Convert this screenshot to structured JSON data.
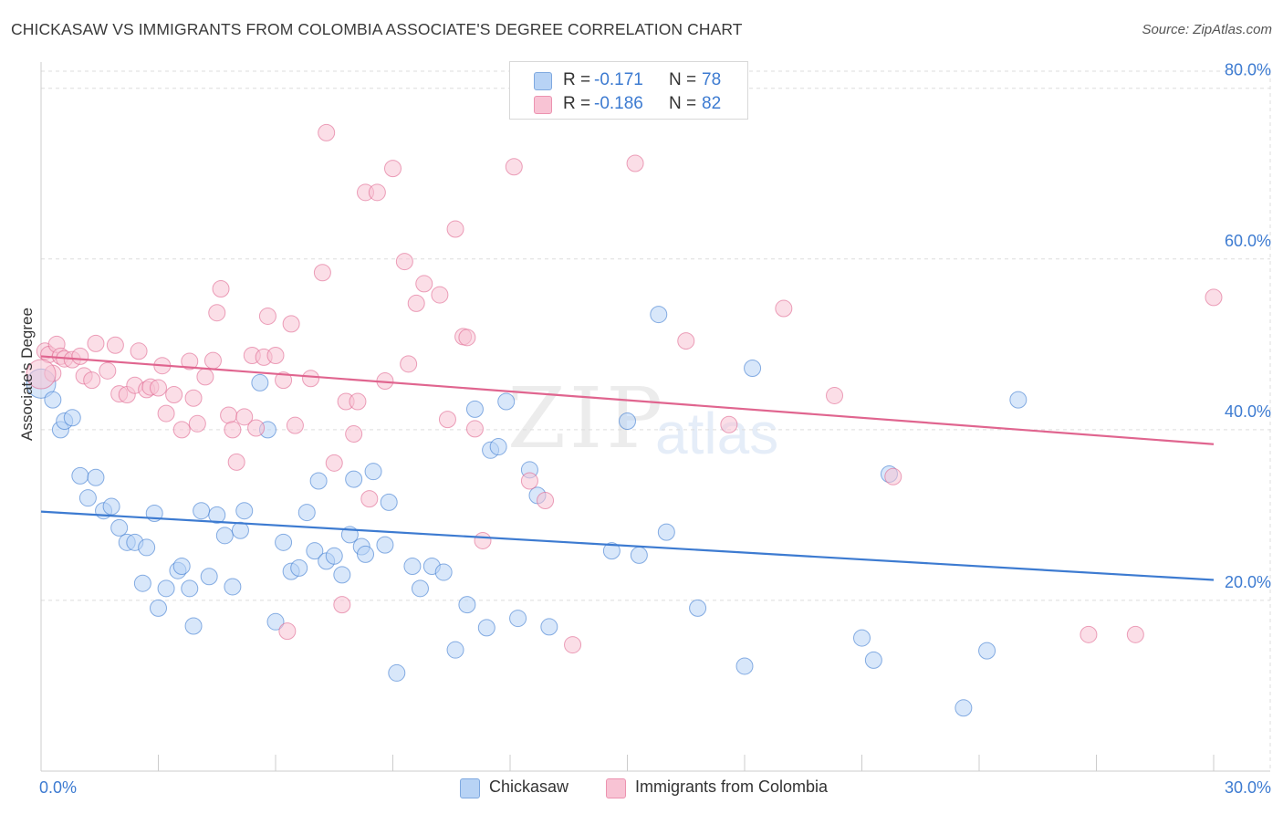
{
  "header": {
    "title": "CHICKASAW VS IMMIGRANTS FROM COLOMBIA ASSOCIATE'S DEGREE CORRELATION CHART",
    "source": "Source: ZipAtlas.com"
  },
  "watermark": {
    "zip": "ZIP",
    "atlas": "atlas"
  },
  "legend": {
    "r_label": "R =",
    "n_label": "N =",
    "rows": [
      {
        "r": "-0.171",
        "n": "78",
        "color": "#b8d3f5"
      },
      {
        "r": "-0.186",
        "n": "82",
        "color": "#f8c3d4"
      }
    ]
  },
  "bottom_legend": [
    {
      "label": "Chickasaw",
      "color": "#b8d3f5"
    },
    {
      "label": "Immigrants from Colombia",
      "color": "#f8c3d4"
    }
  ],
  "chart_data": {
    "type": "scatter",
    "title": "CHICKASAW VS IMMIGRANTS FROM COLOMBIA ASSOCIATE'S DEGREE CORRELATION CHART",
    "xlabel": "",
    "ylabel": "Associate's Degree",
    "xlim": [
      0,
      30
    ],
    "ylim": [
      0,
      82
    ],
    "x_tick_labels": [
      "0.0%",
      "30.0%"
    ],
    "y_ticks": [
      20,
      40,
      60,
      80
    ],
    "y_tick_labels": [
      "20.0%",
      "40.0%",
      "60.0%",
      "80.0%"
    ],
    "grid": true,
    "series": [
      {
        "name": "Chickasaw",
        "color": "#3d7bd1",
        "fill": "#b8d3f5",
        "r": -0.171,
        "n": 78,
        "trend": {
          "x": [
            0,
            30
          ],
          "y": [
            30.4,
            22.4
          ]
        },
        "points": [
          [
            0.0,
            45.4
          ],
          [
            0.3,
            43.5
          ],
          [
            0.5,
            40.0
          ],
          [
            0.6,
            41.0
          ],
          [
            0.8,
            41.4
          ],
          [
            1.0,
            34.6
          ],
          [
            1.2,
            32.0
          ],
          [
            1.4,
            34.4
          ],
          [
            1.6,
            30.5
          ],
          [
            1.8,
            31.0
          ],
          [
            2.0,
            28.5
          ],
          [
            2.2,
            26.8
          ],
          [
            2.4,
            26.8
          ],
          [
            2.6,
            22.0
          ],
          [
            2.7,
            26.2
          ],
          [
            2.9,
            30.2
          ],
          [
            3.0,
            19.1
          ],
          [
            3.2,
            21.4
          ],
          [
            3.5,
            23.5
          ],
          [
            3.6,
            24.0
          ],
          [
            3.8,
            21.4
          ],
          [
            3.9,
            17.0
          ],
          [
            4.1,
            30.5
          ],
          [
            4.3,
            22.8
          ],
          [
            4.5,
            30.0
          ],
          [
            4.7,
            27.6
          ],
          [
            4.9,
            21.6
          ],
          [
            5.1,
            28.2
          ],
          [
            5.2,
            30.5
          ],
          [
            5.6,
            45.5
          ],
          [
            5.8,
            40.0
          ],
          [
            6.0,
            17.5
          ],
          [
            6.2,
            26.8
          ],
          [
            6.4,
            23.4
          ],
          [
            6.6,
            23.8
          ],
          [
            6.8,
            30.3
          ],
          [
            7.0,
            25.8
          ],
          [
            7.1,
            34.0
          ],
          [
            7.3,
            24.6
          ],
          [
            7.5,
            25.2
          ],
          [
            7.7,
            23.0
          ],
          [
            7.9,
            27.7
          ],
          [
            8.0,
            34.2
          ],
          [
            8.2,
            26.3
          ],
          [
            8.3,
            25.4
          ],
          [
            8.5,
            35.1
          ],
          [
            8.8,
            26.5
          ],
          [
            8.9,
            31.5
          ],
          [
            9.1,
            11.5
          ],
          [
            9.5,
            24.0
          ],
          [
            9.7,
            21.4
          ],
          [
            10.0,
            24.0
          ],
          [
            10.3,
            23.3
          ],
          [
            10.6,
            14.2
          ],
          [
            10.9,
            19.5
          ],
          [
            11.1,
            42.4
          ],
          [
            11.4,
            16.8
          ],
          [
            11.5,
            37.6
          ],
          [
            11.7,
            38.0
          ],
          [
            11.9,
            43.3
          ],
          [
            12.2,
            17.9
          ],
          [
            12.5,
            35.3
          ],
          [
            12.7,
            32.3
          ],
          [
            13.0,
            16.9
          ],
          [
            14.6,
            25.8
          ],
          [
            15.0,
            41.0
          ],
          [
            15.3,
            25.3
          ],
          [
            15.8,
            53.5
          ],
          [
            16.0,
            28.0
          ],
          [
            16.8,
            19.1
          ],
          [
            18.0,
            12.3
          ],
          [
            18.2,
            47.2
          ],
          [
            21.0,
            15.6
          ],
          [
            21.3,
            13.0
          ],
          [
            21.7,
            34.8
          ],
          [
            23.6,
            7.4
          ],
          [
            24.2,
            14.1
          ],
          [
            25.0,
            43.5
          ]
        ]
      },
      {
        "name": "Immigrants from Colombia",
        "color": "#e0658f",
        "fill": "#f8c3d4",
        "r": -0.186,
        "n": 82,
        "trend": {
          "x": [
            0,
            30
          ],
          "y": [
            48.6,
            38.3
          ]
        },
        "points": [
          [
            0.1,
            49.2
          ],
          [
            0.2,
            48.8
          ],
          [
            0.3,
            46.6
          ],
          [
            0.4,
            50.0
          ],
          [
            0.5,
            48.6
          ],
          [
            0.6,
            48.3
          ],
          [
            0.8,
            48.2
          ],
          [
            1.0,
            48.6
          ],
          [
            1.1,
            46.3
          ],
          [
            1.3,
            45.8
          ],
          [
            1.4,
            50.1
          ],
          [
            1.7,
            46.9
          ],
          [
            1.9,
            49.9
          ],
          [
            2.0,
            44.2
          ],
          [
            2.2,
            44.1
          ],
          [
            2.4,
            45.2
          ],
          [
            2.5,
            49.2
          ],
          [
            2.7,
            44.7
          ],
          [
            2.8,
            45.0
          ],
          [
            3.0,
            44.9
          ],
          [
            3.1,
            47.5
          ],
          [
            3.2,
            41.9
          ],
          [
            3.4,
            44.1
          ],
          [
            3.6,
            40.0
          ],
          [
            3.8,
            48.0
          ],
          [
            3.9,
            43.7
          ],
          [
            4.0,
            40.7
          ],
          [
            4.2,
            46.2
          ],
          [
            4.4,
            48.1
          ],
          [
            4.5,
            53.7
          ],
          [
            4.6,
            56.5
          ],
          [
            4.8,
            41.7
          ],
          [
            4.9,
            40.0
          ],
          [
            5.0,
            36.2
          ],
          [
            5.2,
            41.5
          ],
          [
            5.4,
            48.7
          ],
          [
            5.5,
            40.2
          ],
          [
            5.7,
            48.5
          ],
          [
            5.8,
            53.3
          ],
          [
            6.0,
            48.7
          ],
          [
            6.2,
            45.8
          ],
          [
            6.3,
            16.4
          ],
          [
            6.4,
            52.4
          ],
          [
            6.5,
            40.5
          ],
          [
            6.9,
            46.0
          ],
          [
            7.2,
            58.4
          ],
          [
            7.3,
            74.8
          ],
          [
            7.5,
            36.1
          ],
          [
            7.7,
            19.5
          ],
          [
            7.8,
            43.3
          ],
          [
            8.0,
            39.5
          ],
          [
            8.1,
            43.3
          ],
          [
            8.3,
            67.8
          ],
          [
            8.4,
            31.9
          ],
          [
            8.6,
            67.8
          ],
          [
            8.8,
            45.7
          ],
          [
            9.0,
            70.6
          ],
          [
            9.3,
            59.7
          ],
          [
            9.4,
            47.7
          ],
          [
            9.6,
            54.8
          ],
          [
            9.8,
            57.1
          ],
          [
            10.2,
            55.8
          ],
          [
            10.4,
            41.2
          ],
          [
            10.6,
            63.5
          ],
          [
            10.8,
            50.9
          ],
          [
            10.9,
            50.8
          ],
          [
            11.1,
            40.1
          ],
          [
            11.3,
            27.0
          ],
          [
            12.1,
            70.8
          ],
          [
            12.5,
            34.0
          ],
          [
            12.9,
            31.7
          ],
          [
            13.6,
            14.8
          ],
          [
            15.2,
            71.2
          ],
          [
            16.5,
            50.4
          ],
          [
            17.6,
            40.6
          ],
          [
            19.0,
            54.2
          ],
          [
            20.3,
            44.0
          ],
          [
            21.8,
            34.5
          ],
          [
            26.8,
            16.0
          ],
          [
            28.0,
            16.0
          ],
          [
            30.0,
            55.5
          ],
          [
            0.0,
            46.5
          ]
        ]
      }
    ]
  }
}
